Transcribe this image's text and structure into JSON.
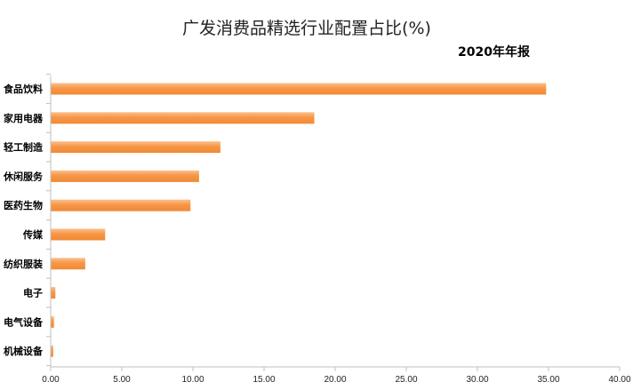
{
  "chart_data": {
    "type": "bar",
    "orientation": "horizontal",
    "title": "广发消费品精选行业配置占比(%)",
    "subtitle": "2020年年报",
    "categories": [
      "食品饮料",
      "家用电器",
      "轻工制造",
      "休闲服务",
      "医药生物",
      "传媒",
      "纺织服装",
      "电子",
      "电气设备",
      "机械设备"
    ],
    "values": [
      34.8,
      18.5,
      11.9,
      10.4,
      9.8,
      3.8,
      2.4,
      0.3,
      0.2,
      0.15
    ],
    "xlim": [
      0,
      40
    ],
    "xticks": [
      "0.00",
      "5.00",
      "10.00",
      "15.00",
      "20.00",
      "25.00",
      "30.00",
      "35.00",
      "40.00"
    ],
    "xtick_values": [
      0,
      5,
      10,
      15,
      20,
      25,
      30,
      35,
      40
    ],
    "bar_color": "#F79646",
    "bar_highlight": "#FBC08E",
    "axis_color": "#BFBFBF",
    "grid": false,
    "legend": "none"
  }
}
